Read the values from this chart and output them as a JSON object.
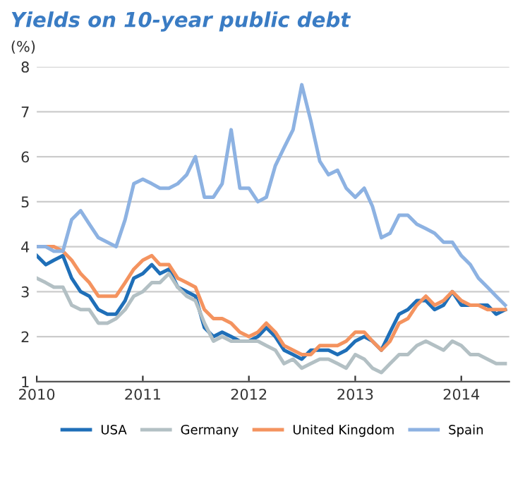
{
  "chart_data": {
    "type": "line",
    "title": "Yields on 10-year public debt",
    "ylabel": "(%)",
    "x": [
      "2010-01",
      "2010-02",
      "2010-03",
      "2010-04",
      "2010-05",
      "2010-06",
      "2010-07",
      "2010-08",
      "2010-09",
      "2010-10",
      "2010-11",
      "2010-12",
      "2011-01",
      "2011-02",
      "2011-03",
      "2011-04",
      "2011-05",
      "2011-06",
      "2011-07",
      "2011-08",
      "2011-09",
      "2011-10",
      "2011-11",
      "2011-12",
      "2012-01",
      "2012-02",
      "2012-03",
      "2012-04",
      "2012-05",
      "2012-06",
      "2012-07",
      "2012-08",
      "2012-09",
      "2012-10",
      "2012-11",
      "2012-12",
      "2013-01",
      "2013-02",
      "2013-03",
      "2013-04",
      "2013-05",
      "2013-06",
      "2013-07",
      "2013-08",
      "2013-09",
      "2013-10",
      "2013-11",
      "2013-12",
      "2014-01",
      "2014-02",
      "2014-03",
      "2014-04",
      "2014-05",
      "2014-06"
    ],
    "series": [
      {
        "name": "USA",
        "color": "#1f6fb8",
        "values": [
          3.8,
          3.6,
          3.7,
          3.8,
          3.3,
          3.0,
          2.9,
          2.6,
          2.5,
          2.5,
          2.8,
          3.3,
          3.4,
          3.6,
          3.4,
          3.5,
          3.1,
          3.0,
          2.9,
          2.2,
          2.0,
          2.1,
          2.0,
          1.9,
          1.9,
          2.0,
          2.2,
          2.0,
          1.7,
          1.6,
          1.5,
          1.7,
          1.7,
          1.7,
          1.6,
          1.7,
          1.9,
          2.0,
          1.9,
          1.7,
          2.1,
          2.5,
          2.6,
          2.8,
          2.8,
          2.6,
          2.7,
          3.0,
          2.7,
          2.7,
          2.7,
          2.7,
          2.5,
          2.6
        ]
      },
      {
        "name": "Germany",
        "color": "#b3c0c4",
        "values": [
          3.3,
          3.2,
          3.1,
          3.1,
          2.7,
          2.6,
          2.6,
          2.3,
          2.3,
          2.4,
          2.6,
          2.9,
          3.0,
          3.2,
          3.2,
          3.4,
          3.1,
          2.9,
          2.8,
          2.3,
          1.9,
          2.0,
          1.9,
          1.9,
          1.9,
          1.9,
          1.8,
          1.7,
          1.4,
          1.5,
          1.3,
          1.4,
          1.5,
          1.5,
          1.4,
          1.3,
          1.6,
          1.5,
          1.3,
          1.2,
          1.4,
          1.6,
          1.6,
          1.8,
          1.9,
          1.8,
          1.7,
          1.9,
          1.8,
          1.6,
          1.6,
          1.5,
          1.4,
          1.4
        ]
      },
      {
        "name": "United Kingdom",
        "color": "#f4935f",
        "values": [
          4.0,
          4.0,
          4.0,
          3.9,
          3.7,
          3.4,
          3.2,
          2.9,
          2.9,
          2.9,
          3.2,
          3.5,
          3.7,
          3.8,
          3.6,
          3.6,
          3.3,
          3.2,
          3.1,
          2.6,
          2.4,
          2.4,
          2.3,
          2.1,
          2.0,
          2.1,
          2.3,
          2.1,
          1.8,
          1.7,
          1.6,
          1.6,
          1.8,
          1.8,
          1.8,
          1.9,
          2.1,
          2.1,
          1.9,
          1.7,
          1.9,
          2.3,
          2.4,
          2.7,
          2.9,
          2.7,
          2.8,
          3.0,
          2.8,
          2.7,
          2.7,
          2.6,
          2.6,
          2.6
        ]
      },
      {
        "name": "Spain",
        "color": "#8db2e2",
        "values": [
          4.0,
          4.0,
          3.9,
          3.9,
          4.6,
          4.8,
          4.5,
          4.2,
          4.1,
          4.0,
          4.6,
          5.4,
          5.5,
          5.4,
          5.3,
          5.3,
          5.4,
          5.6,
          6.0,
          5.1,
          5.1,
          5.4,
          6.6,
          5.3,
          5.3,
          5.0,
          5.1,
          5.8,
          6.2,
          6.6,
          7.6,
          6.8,
          5.9,
          5.6,
          5.7,
          5.3,
          5.1,
          5.3,
          4.9,
          4.2,
          4.3,
          4.7,
          4.7,
          4.5,
          4.4,
          4.3,
          4.1,
          4.1,
          3.8,
          3.6,
          3.3,
          3.1,
          2.9,
          2.7
        ]
      }
    ],
    "xlim": [
      "2010-01-01",
      "2014-06-15"
    ],
    "xticks": [
      "2010",
      "2011",
      "2012",
      "2013",
      "2014"
    ],
    "ylim": [
      1,
      8
    ],
    "yticks": [
      1,
      2,
      3,
      4,
      5,
      6,
      7,
      8
    ],
    "grid": "y",
    "legend": "bottom",
    "marker": "none",
    "line_style": "solid"
  }
}
